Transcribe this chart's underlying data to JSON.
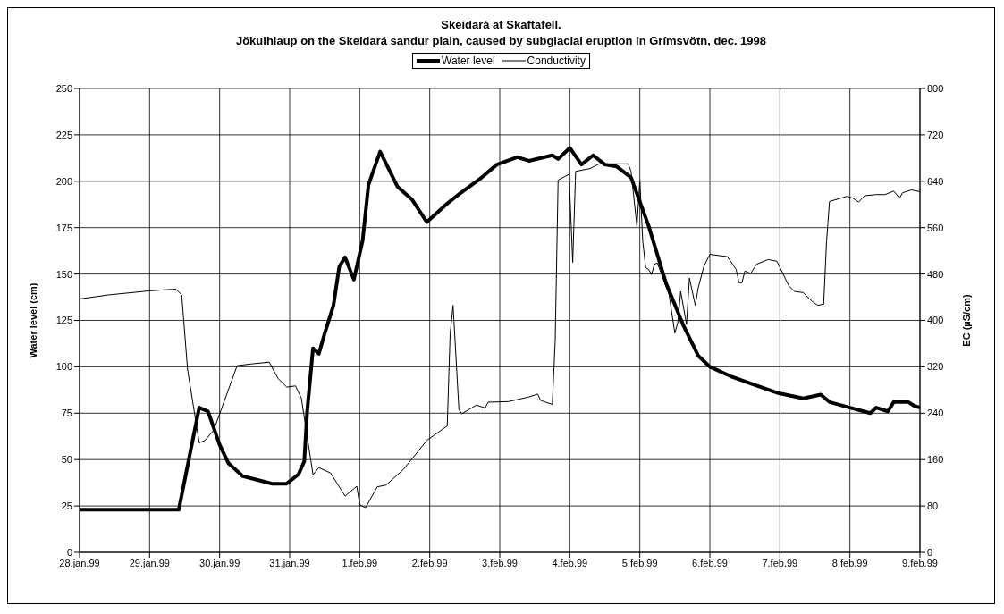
{
  "chart_data": {
    "type": "line",
    "title": "Skeidará at Skaftafell.",
    "subtitle": "Jökulhlaup on the Skeidará sandur plain, caused by subglacial eruption in Grímsvötn, dec. 1998",
    "ylabel": "Water level (cm)",
    "y2label": "EC (µS/cm)",
    "legend": "top",
    "grid": true,
    "marker": "none",
    "line_style": "solid",
    "xlim": [
      "1999-01-28",
      "1999-02-09"
    ],
    "xticks": [
      {
        "value": "1999-01-28",
        "label": "28.jan.99"
      },
      {
        "value": "1999-01-29",
        "label": "29.jan.99"
      },
      {
        "value": "1999-01-30",
        "label": "30.jan.99"
      },
      {
        "value": "1999-01-31",
        "label": "31.jan.99"
      },
      {
        "value": "1999-02-01",
        "label": "1.feb.99"
      },
      {
        "value": "1999-02-02",
        "label": "2.feb.99"
      },
      {
        "value": "1999-02-03",
        "label": "3.feb.99"
      },
      {
        "value": "1999-02-04",
        "label": "4.feb.99"
      },
      {
        "value": "1999-02-05",
        "label": "5.feb.99"
      },
      {
        "value": "1999-02-06",
        "label": "6.feb.99"
      },
      {
        "value": "1999-02-07",
        "label": "7.feb.99"
      },
      {
        "value": "1999-02-08",
        "label": "8.feb.99"
      },
      {
        "value": "1999-02-09",
        "label": "9.feb.99"
      }
    ],
    "ylim": [
      0,
      250
    ],
    "yticks": [
      0,
      25,
      50,
      75,
      100,
      125,
      150,
      175,
      200,
      225,
      250
    ],
    "y2lim": [
      0,
      800
    ],
    "y2ticks": [
      0,
      80,
      160,
      240,
      320,
      400,
      480,
      560,
      640,
      720,
      800
    ],
    "series": [
      {
        "name": "Water level",
        "color": "#000000",
        "x": [
          "1999-01-28T00:00",
          "1999-01-29T00:00",
          "1999-01-29T10:00",
          "1999-01-29T17:00",
          "1999-01-29T20:00",
          "1999-01-30T00:00",
          "1999-01-30T03:00",
          "1999-01-30T08:00",
          "1999-01-30T13:00",
          "1999-01-30T18:00",
          "1999-01-30T23:00",
          "1999-01-31T03:00",
          "1999-01-31T05:00",
          "1999-01-31T06:00",
          "1999-01-31T08:00",
          "1999-01-31T10:00",
          "1999-01-31T12:00",
          "1999-01-31T15:00",
          "1999-01-31T17:00",
          "1999-01-31T19:00",
          "1999-01-31T22:00",
          "1999-02-01T01:00",
          "1999-02-01T03:00",
          "1999-02-01T07:00",
          "1999-02-01T13:00",
          "1999-02-01T18:00",
          "1999-02-01T23:00",
          "1999-02-02T06:00",
          "1999-02-02T10:00",
          "1999-02-02T17:00",
          "1999-02-02T23:00",
          "1999-02-03T06:00",
          "1999-02-03T10:00",
          "1999-02-03T18:00",
          "1999-02-03T20:00",
          "1999-02-04T00:00",
          "1999-02-04T04:00",
          "1999-02-04T08:00",
          "1999-02-04T12:00",
          "1999-02-04T16:00",
          "1999-02-04T21:00",
          "1999-02-05T00:00",
          "1999-02-05T03:00",
          "1999-02-05T09:00",
          "1999-02-05T15:00",
          "1999-02-05T20:00",
          "1999-02-06T00:00",
          "1999-02-06T07:00",
          "1999-02-06T14:00",
          "1999-02-06T23:00",
          "1999-02-07T08:00",
          "1999-02-07T14:00",
          "1999-02-07T17:00",
          "1999-02-08T00:00",
          "1999-02-08T07:00",
          "1999-02-08T09:00",
          "1999-02-08T13:00",
          "1999-02-08T15:00",
          "1999-02-08T20:00",
          "1999-02-08T22:00",
          "1999-02-09T00:00"
        ],
        "values": [
          23,
          23,
          23,
          78,
          76,
          58,
          48,
          41,
          39,
          37,
          37,
          42,
          49,
          76,
          110,
          107,
          118,
          133,
          154,
          159,
          147,
          168,
          198,
          216,
          197,
          190,
          178,
          188,
          193,
          201,
          209,
          213,
          211,
          214,
          212,
          218,
          209,
          214,
          209,
          208,
          202,
          189,
          176,
          145,
          122,
          106,
          100,
          95,
          91,
          86,
          83,
          85,
          81,
          78,
          75,
          78,
          76,
          81,
          81,
          79,
          78
        ]
      },
      {
        "name": "Conductivity",
        "color": "#000000",
        "axis": "y2",
        "x": [
          "1999-01-28T00:00",
          "1999-01-28T10:00",
          "1999-01-29T00:00",
          "1999-01-29T09:00",
          "1999-01-29T11:00",
          "1999-01-29T13:00",
          "1999-01-29T17:00",
          "1999-01-29T19:00",
          "1999-01-29T22:00",
          "1999-01-30T06:00",
          "1999-01-30T11:00",
          "1999-01-30T17:00",
          "1999-01-30T20:00",
          "1999-01-30T23:00",
          "1999-01-31T02:00",
          "1999-01-31T04:00",
          "1999-01-31T08:00",
          "1999-01-31T10:00",
          "1999-01-31T14:00",
          "1999-01-31T19:00",
          "1999-01-31T23:00",
          "1999-02-01T00:00",
          "1999-02-01T02:00",
          "1999-02-01T06:00",
          "1999-02-01T09:00",
          "1999-02-01T15:00",
          "1999-02-01T23:00",
          "1999-02-02T06:00",
          "1999-02-02T07:00",
          "1999-02-02T08:00",
          "1999-02-02T10:00",
          "1999-02-02T11:00",
          "1999-02-02T16:00",
          "1999-02-02T19:00",
          "1999-02-02T20:00",
          "1999-02-03T03:00",
          "1999-02-03T10:00",
          "1999-02-03T13:00",
          "1999-02-03T14:00",
          "1999-02-03T18:00",
          "1999-02-03T19:00",
          "1999-02-03T20:00",
          "1999-02-03T23:45",
          "1999-02-04T01:00",
          "1999-02-04T02:00",
          "1999-02-04T07:00",
          "1999-02-04T10:00",
          "1999-02-04T20:00",
          "1999-02-04T21:00",
          "1999-02-04T23:00",
          "1999-02-05T00:00",
          "1999-02-05T01:00",
          "1999-02-05T02:00",
          "1999-02-05T03:00",
          "1999-02-05T04:00",
          "1999-02-05T05:00",
          "1999-02-05T06:00",
          "1999-02-05T10:00",
          "1999-02-05T12:00",
          "1999-02-05T13:00",
          "1999-02-05T14:00",
          "1999-02-05T16:00",
          "1999-02-05T17:00",
          "1999-02-05T19:00",
          "1999-02-05T20:00",
          "1999-02-05T22:00",
          "1999-02-06T00:00",
          "1999-02-06T06:00",
          "1999-02-06T09:00",
          "1999-02-06T10:00",
          "1999-02-06T11:00",
          "1999-02-06T12:00",
          "1999-02-06T14:00",
          "1999-02-06T16:00",
          "1999-02-06T20:00",
          "1999-02-06T23:00",
          "1999-02-07T03:00",
          "1999-02-07T05:00",
          "1999-02-07T08:00",
          "1999-02-07T11:00",
          "1999-02-07T13:00",
          "1999-02-07T15:00",
          "1999-02-07T16:00",
          "1999-02-07T17:00",
          "1999-02-07T23:00",
          "1999-02-08T01:00",
          "1999-02-08T03:00",
          "1999-02-08T05:00",
          "1999-02-08T09:00",
          "1999-02-08T12:00",
          "1999-02-08T15:00",
          "1999-02-08T17:00",
          "1999-02-08T18:00",
          "1999-02-08T21:00",
          "1999-02-09T00:00"
        ],
        "values": [
          437,
          444,
          451,
          454,
          444,
          316,
          189,
          193,
          211,
          322,
          325,
          328,
          300,
          285,
          287,
          266,
          134,
          146,
          137,
          97,
          114,
          82,
          77,
          113,
          116,
          143,
          193,
          218,
          377,
          426,
          246,
          239,
          254,
          249,
          259,
          260,
          268,
          273,
          262,
          255,
          365,
          642,
          652,
          500,
          657,
          662,
          670,
          670,
          657,
          562,
          642,
          537,
          491,
          488,
          479,
          497,
          499,
          445,
          378,
          396,
          450,
          393,
          473,
          426,
          456,
          494,
          514,
          510,
          488,
          465,
          465,
          485,
          481,
          497,
          505,
          502,
          460,
          450,
          448,
          433,
          426,
          428,
          537,
          605,
          614,
          611,
          604,
          615,
          617,
          617,
          623,
          611,
          620,
          625,
          622
        ]
      }
    ]
  }
}
